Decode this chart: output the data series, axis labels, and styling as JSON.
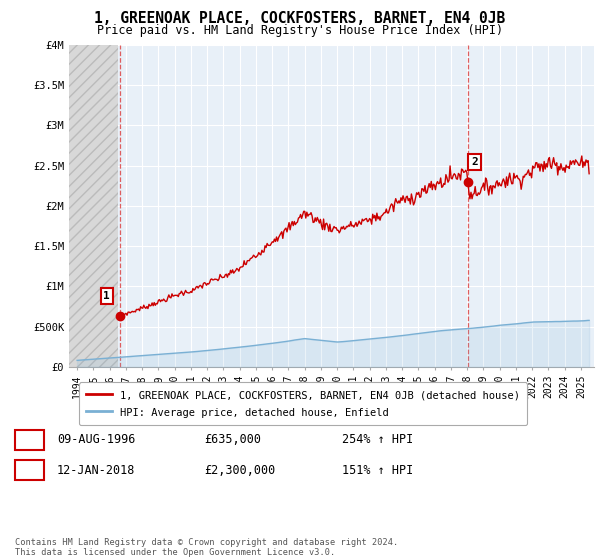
{
  "title": "1, GREENOAK PLACE, COCKFOSTERS, BARNET, EN4 0JB",
  "subtitle": "Price paid vs. HM Land Registry's House Price Index (HPI)",
  "legend_line1": "1, GREENOAK PLACE, COCKFOSTERS, BARNET, EN4 0JB (detached house)",
  "legend_line2": "HPI: Average price, detached house, Enfield",
  "annotation1_label": "1",
  "annotation1_date": "09-AUG-1996",
  "annotation1_value": "£635,000",
  "annotation1_hpi": "254% ↑ HPI",
  "annotation2_label": "2",
  "annotation2_date": "12-JAN-2018",
  "annotation2_value": "£2,300,000",
  "annotation2_hpi": "151% ↑ HPI",
  "footer": "Contains HM Land Registry data © Crown copyright and database right 2024.\nThis data is licensed under the Open Government Licence v3.0.",
  "price_color": "#cc0000",
  "hpi_color": "#7ab0d4",
  "plot_bg_color": "#e8f0f8",
  "grid_color": "#ffffff",
  "vline_color": "#dd4444",
  "marker1_x": 1996.62,
  "marker1_y": 635000,
  "marker2_x": 2018.04,
  "marker2_y": 2300000,
  "ylim": [
    0,
    4000000
  ],
  "xlim": [
    1993.5,
    2025.8
  ],
  "yticks": [
    0,
    500000,
    1000000,
    1500000,
    2000000,
    2500000,
    3000000,
    3500000,
    4000000
  ],
  "ytick_labels": [
    "£0",
    "£500K",
    "£1M",
    "£1.5M",
    "£2M",
    "£2.5M",
    "£3M",
    "£3.5M",
    "£4M"
  ],
  "xticks": [
    1994,
    1995,
    1996,
    1997,
    1998,
    1999,
    2000,
    2001,
    2002,
    2003,
    2004,
    2005,
    2006,
    2007,
    2008,
    2009,
    2010,
    2011,
    2012,
    2013,
    2014,
    2015,
    2016,
    2017,
    2018,
    2019,
    2020,
    2021,
    2022,
    2023,
    2024,
    2025
  ],
  "background_color": "#ffffff",
  "hatch_end_x": 1996.5,
  "vline_x1": 1996.62,
  "vline_x2": 2018.04
}
